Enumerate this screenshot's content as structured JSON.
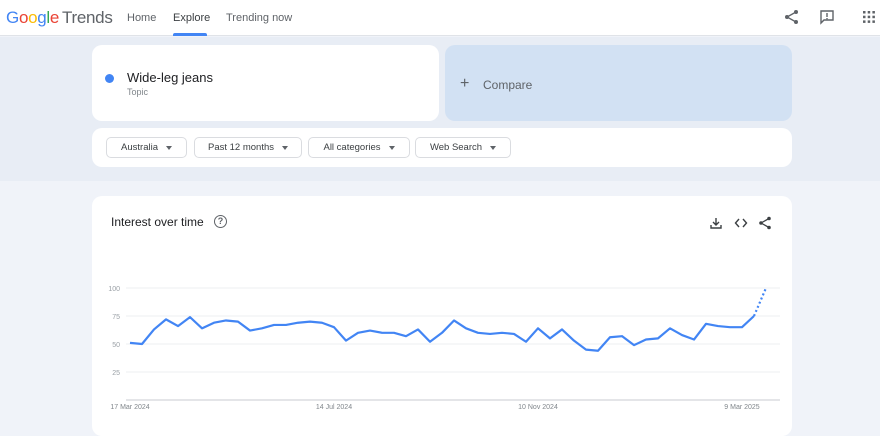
{
  "header": {
    "logo": {
      "google": "Google",
      "trends": "Trends"
    },
    "nav": [
      {
        "label": "Home"
      },
      {
        "label": "Explore",
        "active": true
      },
      {
        "label": "Trending now"
      }
    ],
    "icons": [
      "share-icon",
      "feedback-icon",
      "apps-grid-icon"
    ]
  },
  "search": {
    "term": "Wide-leg jeans",
    "type": "Topic",
    "term_color": "#4285f4",
    "compare_label": "Compare",
    "compare_icon": "plus-icon"
  },
  "filters": [
    {
      "label": "Australia"
    },
    {
      "label": "Past 12 months"
    },
    {
      "label": "All categories"
    },
    {
      "label": "Web Search"
    }
  ],
  "chart_card": {
    "title": "Interest over time",
    "help_icon": "?",
    "actions": [
      "download-icon",
      "embed-code-icon",
      "share-icon"
    ]
  },
  "chart_data": {
    "type": "line",
    "title": "Interest over time",
    "xlabel": "",
    "ylabel": "",
    "ylim": [
      0,
      100
    ],
    "yticks": [
      25,
      50,
      75,
      100
    ],
    "xtick_labels": [
      {
        "index": 0,
        "label": "17 Mar 2024"
      },
      {
        "index": 17,
        "label": "14 Jul 2024"
      },
      {
        "index": 34,
        "label": "10 Nov 2024"
      },
      {
        "index": 51,
        "label": "9 Mar 2025"
      }
    ],
    "x_interval": "weekly",
    "series": [
      {
        "color": "#4285f4",
        "values": [
          51,
          50,
          63,
          72,
          66,
          74,
          64,
          69,
          71,
          70,
          62,
          64,
          67,
          67,
          69,
          70,
          69,
          65,
          53,
          60,
          62,
          60,
          60,
          57,
          63,
          52,
          60,
          71,
          64,
          60,
          59,
          60,
          59,
          52,
          64,
          55,
          63,
          53,
          45,
          44,
          56,
          57,
          49,
          54,
          55,
          64,
          58,
          54,
          68,
          66,
          65,
          65,
          75,
          100
        ],
        "partial_last_point": true
      }
    ],
    "grid": true
  }
}
